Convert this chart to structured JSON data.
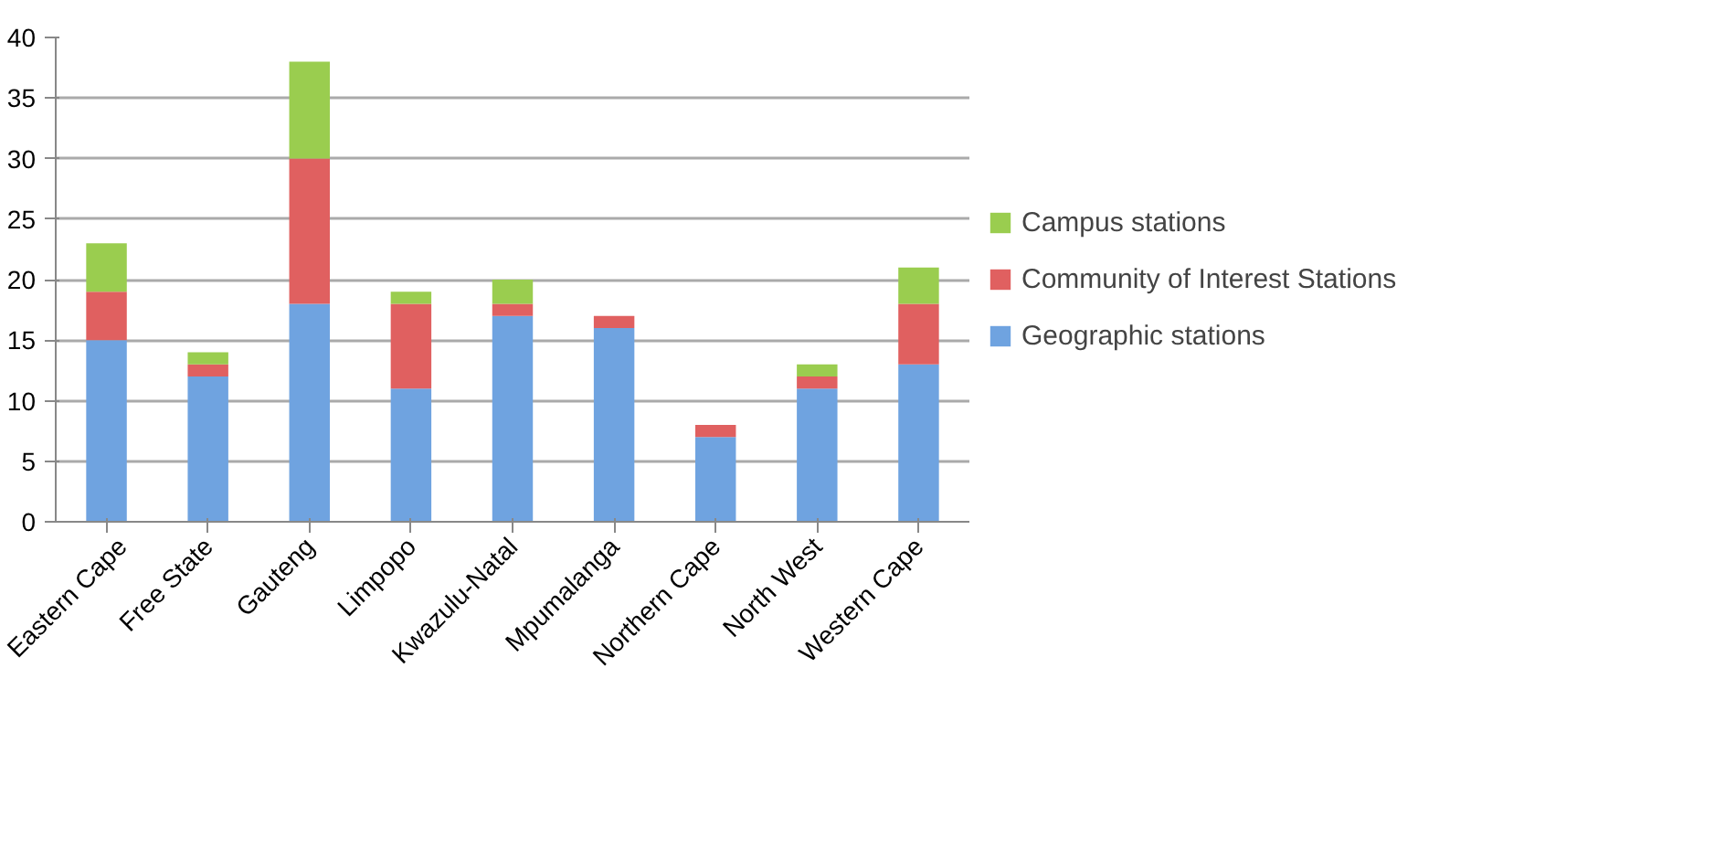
{
  "chart_data": {
    "type": "bar",
    "stacked": true,
    "categories": [
      "Eastern Cape",
      "Free State",
      "Gauteng",
      "Limpopo",
      "Kwazulu-Natal",
      "Mpumalanga",
      "Northern Cape",
      "North West",
      "Western Cape"
    ],
    "series": [
      {
        "name": "Geographic stations",
        "color": "#6fa3e0",
        "values": [
          15,
          12,
          18,
          11,
          17,
          16,
          7,
          11,
          13
        ]
      },
      {
        "name": "Community of Interest Stations",
        "color": "#e06060",
        "values": [
          4,
          1,
          12,
          7,
          1,
          1,
          1,
          1,
          5
        ]
      },
      {
        "name": "Campus stations",
        "color": "#9acd4f",
        "values": [
          4,
          1,
          8,
          1,
          2,
          0,
          0,
          1,
          3
        ]
      }
    ],
    "ylim": [
      0,
      40
    ],
    "yticks": [
      0,
      5,
      10,
      15,
      20,
      25,
      30,
      35,
      40
    ],
    "grid": "y",
    "legend": "right"
  }
}
